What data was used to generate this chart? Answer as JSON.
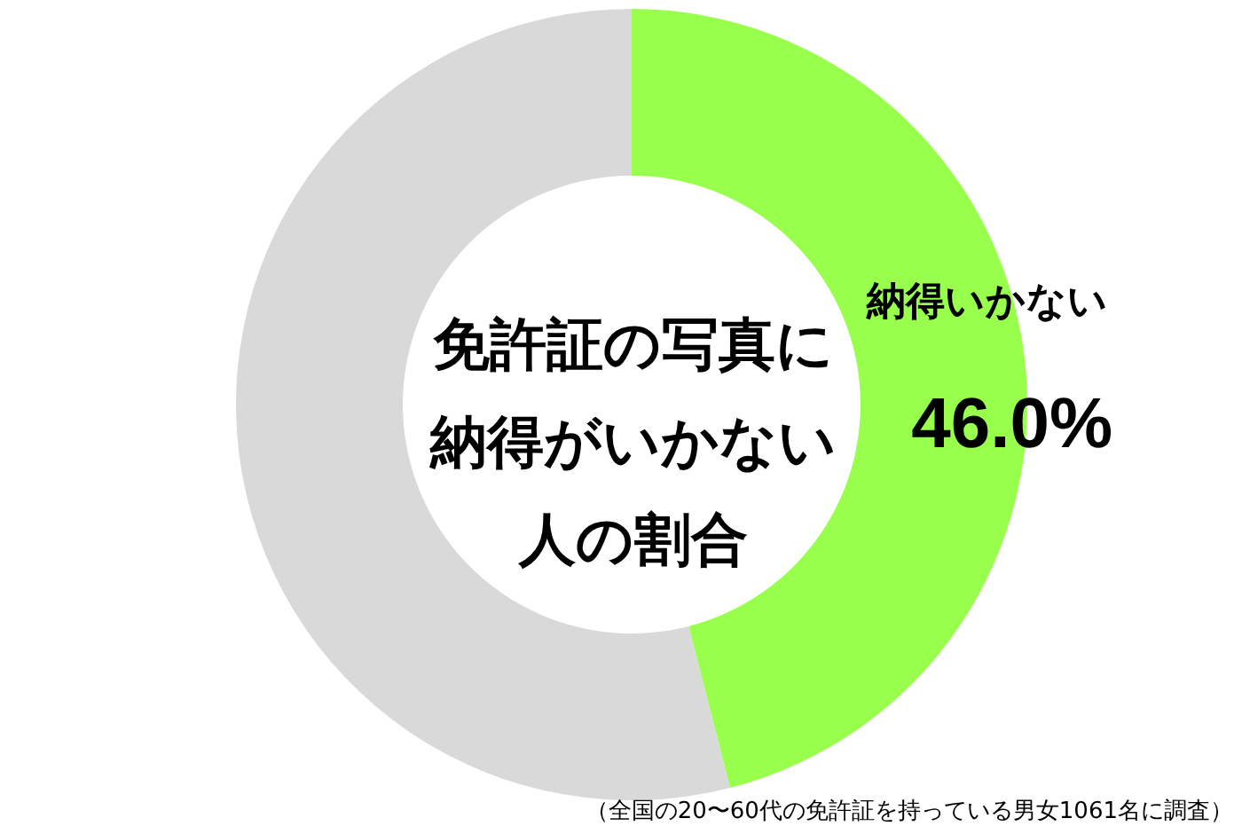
{
  "chart_data": {
    "type": "donut",
    "title": "免許証の写真に納得がいかない人の割合",
    "categories": [
      "納得いかない",
      null
    ],
    "values": [
      46.0,
      54.0
    ],
    "colors": [
      "#99ff4d",
      "#d9d9d9"
    ],
    "value_labels": [
      "46.0%",
      null
    ],
    "annotations": [
      "（全国の20〜60代の免許証を持っている男女1061名に調査）"
    ]
  }
}
